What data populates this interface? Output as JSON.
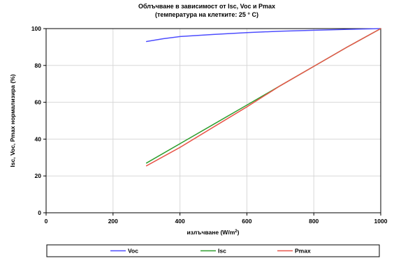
{
  "chart_data": {
    "type": "line",
    "title": "Облъчване в зависимост от Isc, Voc и Pmax",
    "subtitle": "(температура на клетките: 25 ° C)",
    "xlabel": "излъчване (W/m",
    "xlabel_sup": "2",
    "xlabel_close": ")",
    "ylabel": "Isc, Voc, Pmax нормализира (%)",
    "xlim": [
      0,
      1000
    ],
    "ylim": [
      0,
      100
    ],
    "x_ticks": [
      "0",
      "200",
      "400",
      "600",
      "800",
      "1000"
    ],
    "y_ticks": [
      "0",
      "20",
      "40",
      "60",
      "80",
      "100"
    ],
    "grid": true,
    "legend_position": "bottom",
    "series": [
      {
        "name": "Voc",
        "color": "#4d4dff",
        "x": [
          300,
          350,
          400,
          500,
          600,
          700,
          800,
          900,
          1000
        ],
        "y": [
          93,
          94.5,
          95.7,
          96.8,
          97.8,
          98.6,
          99.1,
          99.6,
          100
        ]
      },
      {
        "name": "Isc",
        "color": "#2e9e2e",
        "x": [
          300,
          400,
          500,
          600,
          700,
          800,
          900,
          1000
        ],
        "y": [
          27,
          37.5,
          48,
          58.5,
          69,
          79.5,
          90,
          100
        ]
      },
      {
        "name": "Pmax",
        "color": "#e8564a",
        "x": [
          300,
          400,
          500,
          600,
          700,
          800,
          900,
          1000
        ],
        "y": [
          25.5,
          35.5,
          46.5,
          57.5,
          69,
          79.5,
          90,
          100
        ]
      }
    ]
  }
}
